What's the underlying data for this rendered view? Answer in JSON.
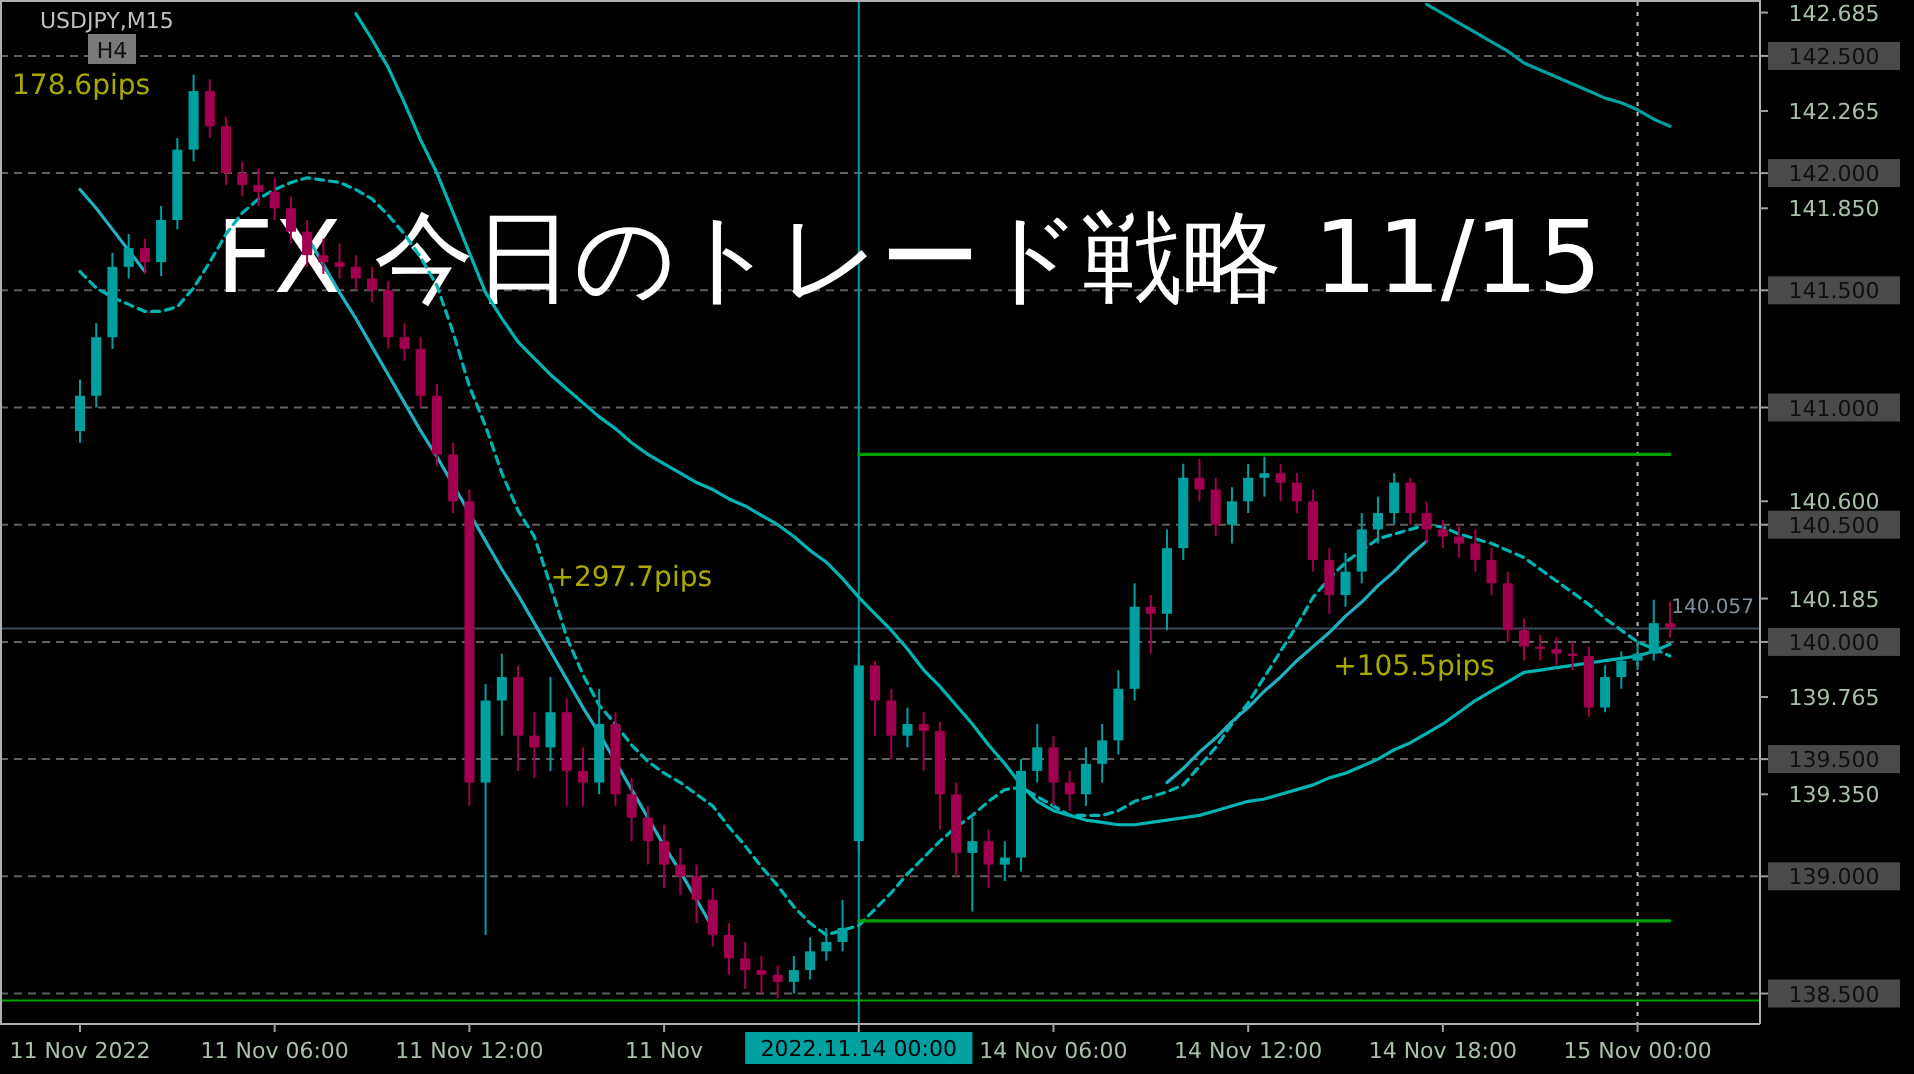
{
  "chart_data": {
    "type": "candlestick",
    "title": "FX 今日のトレード戦略 11/15",
    "subtitle": "USDJPY,M15",
    "categories": [
      "11 Nov 2022",
      null,
      null,
      null,
      null,
      null,
      null,
      null,
      null,
      null,
      null,
      null,
      "11 Nov 06:00",
      null,
      null,
      null,
      null,
      null,
      null,
      null,
      null,
      null,
      null,
      null,
      "11 Nov 12:00",
      null,
      null,
      null,
      null,
      null,
      null,
      null,
      null,
      null,
      null,
      null,
      "11 Nov",
      null,
      null,
      null,
      null,
      null,
      null,
      null,
      null,
      null,
      null,
      null,
      "2022.11.14 00:00",
      null,
      null,
      null,
      null,
      null,
      null,
      null,
      null,
      null,
      null,
      null,
      "14 Nov 06:00",
      null,
      null,
      null,
      null,
      null,
      null,
      null,
      null,
      null,
      null,
      null,
      "14 Nov 12:00",
      null,
      null,
      null,
      null,
      null,
      null,
      null,
      null,
      null,
      null,
      null,
      "14 Nov 18:00",
      null,
      null,
      null,
      null,
      null,
      null,
      null,
      null,
      null,
      null,
      null,
      "15 Nov 00:00",
      null,
      null
    ],
    "ohlc": [
      [
        140.9,
        141.12,
        140.85,
        141.05
      ],
      [
        141.05,
        141.36,
        141.0,
        141.3
      ],
      [
        141.3,
        141.66,
        141.25,
        141.6
      ],
      [
        141.6,
        141.74,
        141.55,
        141.68
      ],
      [
        141.68,
        141.72,
        141.57,
        141.62
      ],
      [
        141.62,
        141.86,
        141.56,
        141.8
      ],
      [
        141.8,
        142.15,
        141.76,
        142.1
      ],
      [
        142.1,
        142.42,
        142.05,
        142.35
      ],
      [
        142.35,
        142.4,
        142.15,
        142.2
      ],
      [
        142.2,
        142.24,
        141.95,
        142.0
      ],
      [
        142.0,
        142.05,
        141.9,
        141.95
      ],
      [
        141.95,
        142.02,
        141.86,
        141.92
      ],
      [
        141.92,
        141.98,
        141.8,
        141.85
      ],
      [
        141.85,
        141.9,
        141.7,
        141.75
      ],
      [
        141.75,
        141.8,
        141.6,
        141.65
      ],
      [
        141.65,
        141.72,
        141.57,
        141.62
      ],
      [
        141.62,
        141.7,
        141.55,
        141.6
      ],
      [
        141.6,
        141.65,
        141.5,
        141.55
      ],
      [
        141.55,
        141.6,
        141.45,
        141.5
      ],
      [
        141.5,
        141.54,
        141.25,
        141.3
      ],
      [
        141.3,
        141.36,
        141.2,
        141.25
      ],
      [
        141.25,
        141.3,
        141.0,
        141.05
      ],
      [
        141.05,
        141.1,
        140.75,
        140.8
      ],
      [
        140.8,
        140.85,
        140.55,
        140.6
      ],
      [
        140.6,
        140.65,
        139.3,
        139.4
      ],
      [
        139.4,
        139.82,
        138.75,
        139.75
      ],
      [
        139.75,
        139.95,
        139.6,
        139.85
      ],
      [
        139.85,
        139.9,
        139.45,
        139.6
      ],
      [
        139.6,
        139.7,
        139.42,
        139.55
      ],
      [
        139.55,
        139.85,
        139.45,
        139.7
      ],
      [
        139.7,
        139.76,
        139.3,
        139.45
      ],
      [
        139.45,
        139.55,
        139.3,
        139.4
      ],
      [
        139.4,
        139.8,
        139.35,
        139.65
      ],
      [
        139.65,
        139.7,
        139.3,
        139.35
      ],
      [
        139.35,
        139.42,
        139.15,
        139.25
      ],
      [
        139.25,
        139.3,
        139.05,
        139.15
      ],
      [
        139.15,
        139.22,
        138.95,
        139.05
      ],
      [
        139.05,
        139.12,
        138.92,
        139.0
      ],
      [
        139.0,
        139.05,
        138.8,
        138.9
      ],
      [
        138.9,
        138.95,
        138.7,
        138.75
      ],
      [
        138.75,
        138.8,
        138.58,
        138.65
      ],
      [
        138.65,
        138.72,
        138.52,
        138.6
      ],
      [
        138.6,
        138.66,
        138.5,
        138.58
      ],
      [
        138.58,
        138.62,
        138.48,
        138.55
      ],
      [
        138.55,
        138.66,
        138.5,
        138.6
      ],
      [
        138.6,
        138.74,
        138.56,
        138.68
      ],
      [
        138.68,
        138.78,
        138.64,
        138.72
      ],
      [
        138.72,
        138.9,
        138.68,
        138.78
      ],
      [
        139.15,
        139.95,
        139.1,
        139.9
      ],
      [
        139.9,
        139.92,
        139.6,
        139.75
      ],
      [
        139.75,
        139.8,
        139.5,
        139.6
      ],
      [
        139.6,
        139.72,
        139.55,
        139.65
      ],
      [
        139.65,
        139.7,
        139.45,
        139.62
      ],
      [
        139.62,
        139.66,
        139.2,
        139.35
      ],
      [
        139.35,
        139.4,
        139.0,
        139.1
      ],
      [
        139.1,
        139.25,
        138.85,
        139.15
      ],
      [
        139.15,
        139.2,
        138.95,
        139.05
      ],
      [
        139.05,
        139.15,
        138.98,
        139.08
      ],
      [
        139.08,
        139.5,
        139.02,
        139.45
      ],
      [
        139.45,
        139.65,
        139.4,
        139.55
      ],
      [
        139.55,
        139.6,
        139.3,
        139.4
      ],
      [
        139.4,
        139.45,
        139.28,
        139.35
      ],
      [
        139.35,
        139.55,
        139.3,
        139.48
      ],
      [
        139.48,
        139.65,
        139.4,
        139.58
      ],
      [
        139.58,
        139.88,
        139.52,
        139.8
      ],
      [
        139.8,
        140.25,
        139.75,
        140.15
      ],
      [
        140.15,
        140.2,
        139.95,
        140.12
      ],
      [
        140.12,
        140.48,
        140.05,
        140.4
      ],
      [
        140.4,
        140.76,
        140.35,
        140.7
      ],
      [
        140.7,
        140.78,
        140.6,
        140.65
      ],
      [
        140.65,
        140.7,
        140.45,
        140.5
      ],
      [
        140.5,
        140.66,
        140.42,
        140.6
      ],
      [
        140.6,
        140.76,
        140.55,
        140.7
      ],
      [
        140.7,
        140.79,
        140.62,
        140.72
      ],
      [
        140.72,
        140.76,
        140.6,
        140.68
      ],
      [
        140.68,
        140.72,
        140.55,
        140.6
      ],
      [
        140.6,
        140.65,
        140.3,
        140.35
      ],
      [
        140.35,
        140.4,
        140.12,
        140.2
      ],
      [
        140.2,
        140.38,
        140.15,
        140.3
      ],
      [
        140.3,
        140.55,
        140.25,
        140.48
      ],
      [
        140.48,
        140.62,
        140.42,
        140.55
      ],
      [
        140.55,
        140.72,
        140.5,
        140.68
      ],
      [
        140.68,
        140.7,
        140.5,
        140.55
      ],
      [
        140.55,
        140.6,
        140.42,
        140.48
      ],
      [
        140.48,
        140.52,
        140.4,
        140.45
      ],
      [
        140.45,
        140.5,
        140.36,
        140.42
      ],
      [
        140.42,
        140.48,
        140.3,
        140.35
      ],
      [
        140.35,
        140.4,
        140.2,
        140.25
      ],
      [
        140.25,
        140.3,
        140.0,
        140.05
      ],
      [
        140.05,
        140.1,
        139.92,
        139.98
      ],
      [
        139.98,
        140.03,
        139.92,
        139.97
      ],
      [
        139.97,
        140.02,
        139.9,
        139.95
      ],
      [
        139.95,
        140.0,
        139.88,
        139.94
      ],
      [
        139.94,
        139.98,
        139.68,
        139.72
      ],
      [
        139.72,
        139.9,
        139.7,
        139.85
      ],
      [
        139.85,
        139.96,
        139.8,
        139.92
      ],
      [
        139.92,
        140.0,
        139.88,
        139.95
      ],
      [
        139.95,
        140.18,
        139.92,
        140.08
      ],
      [
        140.08,
        140.17,
        140.02,
        140.06
      ]
    ],
    "colors": [
      "#00a0a0",
      "#00a0a0",
      "#00a0a0",
      "#00a0a0",
      "#a0004f",
      "#00a0a0",
      "#00a0a0",
      "#00a0a0",
      "#a0004f",
      "#a0004f",
      "#a0004f",
      "#a0004f",
      "#a0004f",
      "#a0004f",
      "#a0004f",
      "#a0004f",
      "#a0004f",
      "#a0004f",
      "#a0004f",
      "#a0004f",
      "#a0004f",
      "#a0004f",
      "#a0004f",
      "#a0004f",
      "#a0004f",
      "#00a0a0",
      "#00a0a0",
      "#a0004f",
      "#a0004f",
      "#00a0a0",
      "#a0004f",
      "#a0004f",
      "#00a0a0",
      "#a0004f",
      "#a0004f",
      "#a0004f",
      "#a0004f",
      "#a0004f",
      "#a0004f",
      "#a0004f",
      "#a0004f",
      "#a0004f",
      "#a0004f",
      "#a0004f",
      "#00a0a0",
      "#00a0a0",
      "#00a0a0",
      "#00a0a0",
      "#00a0a0",
      "#a0004f",
      "#a0004f",
      "#00a0a0",
      "#a0004f",
      "#a0004f",
      "#a0004f",
      "#00a0a0",
      "#a0004f",
      "#00a0a0",
      "#00a0a0",
      "#00a0a0",
      "#a0004f",
      "#a0004f",
      "#00a0a0",
      "#00a0a0",
      "#00a0a0",
      "#00a0a0",
      "#a0004f",
      "#00a0a0",
      "#00a0a0",
      "#a0004f",
      "#a0004f",
      "#00a0a0",
      "#00a0a0",
      "#00a0a0",
      "#a0004f",
      "#a0004f",
      "#a0004f",
      "#a0004f",
      "#00a0a0",
      "#00a0a0",
      "#00a0a0",
      "#00a0a0",
      "#a0004f",
      "#a0004f",
      "#a0004f",
      "#a0004f",
      "#a0004f",
      "#a0004f",
      "#a0004f",
      "#a0004f",
      "#a0004f",
      "#a0004f",
      "#a0004f",
      "#a0004f",
      "#00a0a0",
      "#00a0a0",
      "#00a0a0",
      "#00a0a0",
      "#a0004f"
    ],
    "series": [
      {
        "type": "line",
        "color": "#00b4b4",
        "line_style": "dashed",
        "values": [
          141.58,
          141.51,
          141.47,
          141.44,
          141.41,
          141.41,
          141.43,
          141.51,
          141.62,
          141.74,
          141.83,
          141.89,
          141.93,
          141.96,
          141.98,
          141.97,
          141.96,
          141.93,
          141.89,
          141.82,
          141.74,
          141.64,
          141.52,
          141.32,
          141.09,
          140.92,
          140.72,
          140.56,
          140.45,
          140.24,
          140.02,
          139.86,
          139.73,
          139.65,
          139.56,
          139.49,
          139.44,
          139.4,
          139.35,
          139.3,
          139.21,
          139.13,
          139.04,
          138.96,
          138.87,
          138.8,
          138.75,
          138.77,
          138.79,
          138.86,
          138.93,
          139.01,
          139.08,
          139.15,
          139.21,
          139.26,
          139.32,
          139.37,
          139.38,
          139.34,
          139.3,
          139.26,
          139.26,
          139.26,
          139.28,
          139.32,
          139.34,
          139.36,
          139.39,
          139.47,
          139.55,
          139.65,
          139.74,
          139.85,
          139.96,
          140.07,
          140.19,
          140.27,
          140.34,
          140.39,
          140.44,
          140.46,
          140.48,
          140.5,
          140.49,
          140.46,
          140.44,
          140.42,
          140.39,
          140.36,
          140.31,
          140.26,
          140.21,
          140.16,
          140.1,
          140.05,
          140.0,
          139.97,
          139.94
        ]
      },
      {
        "type": "line",
        "color": "#00b4b4",
        "line_style": "solid",
        "values": [
          null,
          null,
          null,
          null,
          null,
          null,
          null,
          null,
          null,
          null,
          null,
          null,
          null,
          null,
          null,
          null,
          null,
          142.68,
          142.57,
          142.45,
          142.3,
          142.14,
          142.0,
          141.83,
          141.66,
          141.49,
          141.38,
          141.28,
          141.21,
          141.14,
          141.08,
          141.02,
          140.96,
          140.91,
          140.85,
          140.8,
          140.76,
          140.72,
          140.68,
          140.65,
          140.61,
          140.58,
          140.54,
          140.5,
          140.45,
          140.39,
          140.34,
          140.27,
          140.19,
          140.12,
          140.05,
          139.97,
          139.88,
          139.81,
          139.73,
          139.65,
          139.56,
          139.48,
          139.39,
          139.32,
          139.28,
          139.26,
          139.24,
          139.23,
          139.22,
          139.22,
          139.23,
          139.24,
          139.25,
          139.26,
          139.28,
          139.3,
          139.32,
          139.33,
          139.35,
          139.37,
          139.39,
          139.42,
          139.44,
          139.47,
          139.5,
          139.54,
          139.57,
          139.61,
          139.65,
          139.7,
          139.75,
          139.79,
          139.83,
          139.87,
          139.88,
          139.89,
          139.9,
          139.91,
          139.92,
          139.93,
          139.94,
          139.96,
          139.99
        ]
      },
      {
        "type": "line",
        "color": "#00a0a0",
        "line_style": "solid",
        "values": [
          null,
          null,
          null,
          null,
          null,
          null,
          null,
          null,
          null,
          null,
          null,
          null,
          null,
          null,
          null,
          null,
          null,
          null,
          null,
          null,
          null,
          null,
          null,
          null,
          null,
          null,
          null,
          null,
          null,
          null,
          null,
          null,
          null,
          null,
          null,
          null,
          null,
          null,
          null,
          null,
          null,
          null,
          null,
          null,
          null,
          null,
          null,
          null,
          null,
          null,
          null,
          null,
          null,
          null,
          null,
          null,
          null,
          null,
          null,
          null,
          null,
          null,
          null,
          null,
          null,
          null,
          null,
          null,
          null,
          null,
          null,
          null,
          null,
          null,
          null,
          null,
          null,
          null,
          null,
          null,
          null,
          null,
          null,
          142.72,
          142.68,
          142.64,
          142.6,
          142.56,
          142.52,
          142.47,
          142.44,
          142.41,
          142.38,
          142.35,
          142.32,
          142.3,
          142.27,
          142.23,
          142.2
        ]
      },
      {
        "type": "line",
        "color": "#20b0c0",
        "line_style": "solid",
        "values": [
          141.93,
          141.85,
          141.76,
          141.67,
          141.58,
          null,
          null,
          null,
          null,
          null,
          null,
          null,
          null,
          null,
          null,
          null,
          null,
          null,
          null,
          null,
          null,
          null,
          null,
          null,
          null,
          null,
          null,
          null,
          null,
          null,
          null,
          null,
          null,
          null,
          null,
          null,
          null,
          null,
          null,
          null,
          null,
          null,
          null,
          null,
          null,
          null,
          null,
          null,
          null,
          null,
          null,
          null,
          null,
          null,
          null,
          null,
          null,
          null,
          null,
          null,
          null,
          null,
          null,
          null,
          null,
          null,
          null,
          null,
          null,
          null,
          null,
          null,
          null,
          null,
          null,
          null,
          null,
          null,
          null,
          null,
          null,
          null,
          null,
          null,
          null,
          null,
          null,
          null,
          null,
          null,
          null,
          null,
          null,
          null,
          null,
          null,
          null,
          null,
          null
        ]
      },
      {
        "type": "line",
        "color": "#20b0c0",
        "line_style": "solid",
        "values": [
          null,
          null,
          null,
          null,
          null,
          null,
          null,
          null,
          null,
          null,
          null,
          null,
          null,
          null,
          141.73,
          141.61,
          141.49,
          141.38,
          141.26,
          141.14,
          141.02,
          140.9,
          140.79,
          140.67,
          140.55,
          140.43,
          140.31,
          140.2,
          140.08,
          139.96,
          139.84,
          139.72,
          139.61,
          139.49,
          139.37,
          139.25,
          139.13,
          139.02,
          138.9,
          138.78,
          null,
          null,
          null,
          null,
          null,
          null,
          null,
          null,
          null,
          null,
          null,
          null,
          null,
          null,
          null,
          null,
          null,
          null,
          null,
          null,
          null,
          null,
          null,
          null,
          null,
          null,
          null,
          null,
          null,
          null,
          null,
          null,
          null,
          null,
          null,
          null,
          null,
          null,
          null,
          null,
          null,
          null,
          null,
          null,
          null,
          null,
          null,
          null,
          null,
          null,
          null,
          null,
          null,
          null,
          null,
          null,
          null,
          null,
          null
        ]
      },
      {
        "type": "line",
        "color": "#20b0c0",
        "line_style": "solid",
        "values": [
          null,
          null,
          null,
          null,
          null,
          null,
          null,
          null,
          null,
          null,
          null,
          null,
          null,
          null,
          null,
          null,
          null,
          null,
          null,
          null,
          null,
          null,
          null,
          null,
          null,
          null,
          null,
          null,
          null,
          null,
          null,
          null,
          null,
          null,
          null,
          null,
          null,
          null,
          null,
          null,
          null,
          null,
          null,
          null,
          null,
          null,
          null,
          null,
          null,
          null,
          null,
          null,
          null,
          null,
          null,
          null,
          null,
          null,
          null,
          null,
          null,
          null,
          null,
          null,
          null,
          null,
          null,
          139.4,
          139.46,
          139.53,
          139.59,
          139.66,
          139.72,
          139.79,
          139.85,
          139.92,
          139.98,
          140.04,
          140.11,
          140.17,
          140.24,
          140.3,
          140.37,
          140.43,
          null,
          null,
          null,
          null,
          null,
          null,
          null,
          null,
          null,
          null,
          null,
          null,
          null,
          null,
          null
        ]
      },
      {
        "type": "line",
        "color": "#00a000",
        "line_style": "solid",
        "values": [
          null,
          null,
          null,
          null,
          null,
          null,
          null,
          null,
          null,
          null,
          null,
          null,
          null,
          null,
          null,
          null,
          null,
          null,
          null,
          null,
          null,
          null,
          null,
          null,
          null,
          null,
          null,
          null,
          null,
          null,
          null,
          null,
          null,
          null,
          null,
          null,
          null,
          null,
          null,
          null,
          null,
          null,
          null,
          null,
          null,
          null,
          null,
          null,
          140.8,
          140.8,
          140.8,
          140.8,
          140.8,
          140.8,
          140.8,
          140.8,
          140.8,
          140.8,
          140.8,
          140.8,
          140.8,
          140.8,
          140.8,
          140.8,
          140.8,
          140.8,
          140.8,
          140.8,
          140.8,
          140.8,
          140.8,
          140.8,
          140.8,
          140.8,
          140.8,
          140.8,
          140.8,
          140.8,
          140.8,
          140.8,
          140.8,
          140.8,
          140.8,
          140.8,
          140.8,
          140.8,
          140.8,
          140.8,
          140.8,
          140.8,
          140.8,
          140.8,
          140.8,
          140.8,
          140.8,
          140.8,
          140.8,
          140.8,
          140.8
        ]
      },
      {
        "type": "line",
        "color": "#00a000",
        "line_style": "solid",
        "values": [
          null,
          null,
          null,
          null,
          null,
          null,
          null,
          null,
          null,
          null,
          null,
          null,
          null,
          null,
          null,
          null,
          null,
          null,
          null,
          null,
          null,
          null,
          null,
          null,
          null,
          null,
          null,
          null,
          null,
          null,
          null,
          null,
          null,
          null,
          null,
          null,
          null,
          null,
          null,
          null,
          null,
          null,
          null,
          null,
          null,
          null,
          null,
          null,
          138.81,
          138.81,
          138.81,
          138.81,
          138.81,
          138.81,
          138.81,
          138.81,
          138.81,
          138.81,
          138.81,
          138.81,
          138.81,
          138.81,
          138.81,
          138.81,
          138.81,
          138.81,
          138.81,
          138.81,
          138.81,
          138.81,
          138.81,
          138.81,
          138.81,
          138.81,
          138.81,
          138.81,
          138.81,
          138.81,
          138.81,
          138.81,
          138.81,
          138.81,
          138.81,
          138.81,
          138.81,
          138.81,
          138.81,
          138.81,
          138.81,
          138.81,
          138.81,
          138.81,
          138.81,
          138.81,
          138.81,
          138.81,
          138.81,
          138.81,
          138.81
        ]
      }
    ],
    "ylim": [
      138.37,
      142.73
    ],
    "yticks": [
      {
        "value": 142.685,
        "label": "142.685"
      },
      {
        "value": 142.265,
        "label": "142.265"
      },
      {
        "value": 141.85,
        "label": "141.850"
      },
      {
        "value": 140.6,
        "label": "140.600"
      },
      {
        "value": 140.185,
        "label": "140.185"
      },
      {
        "value": 139.765,
        "label": "139.765"
      },
      {
        "value": 139.35,
        "label": "139.350"
      }
    ],
    "ref_lines": [
      {
        "axis": "y",
        "value": 142.5,
        "label": "142.500",
        "color": "#606060",
        "line_style": "dashed"
      },
      {
        "axis": "y",
        "value": 142.0,
        "label": "142.000",
        "color": "#606060",
        "line_style": "dashed"
      },
      {
        "axis": "y",
        "value": 141.5,
        "label": "141.500",
        "color": "#606060",
        "line_style": "dashed"
      },
      {
        "axis": "y",
        "value": 141.0,
        "label": "141.000",
        "color": "#606060",
        "line_style": "dashed"
      },
      {
        "axis": "y",
        "value": 140.5,
        "label": "140.500",
        "color": "#606060",
        "line_style": "dashed"
      },
      {
        "axis": "y",
        "value": 140.0,
        "label": "140.000",
        "color": "#606060",
        "line_style": "dashed"
      },
      {
        "axis": "y",
        "value": 139.5,
        "label": "139.500",
        "color": "#606060",
        "line_style": "dashed"
      },
      {
        "axis": "y",
        "value": 139.0,
        "label": "139.000",
        "color": "#606060",
        "line_style": "dashed"
      },
      {
        "axis": "y",
        "value": 138.5,
        "label": "138.500",
        "color": "#606060",
        "line_style": "dashed"
      },
      {
        "axis": "y",
        "value": 140.057,
        "label": "140.057",
        "color": "#3a4a5c",
        "line_style": "solid"
      },
      {
        "axis": "y",
        "value": 138.47,
        "color": "#00a000",
        "line_style": "solid"
      },
      {
        "axis": "x",
        "value": "2022.11.14 00:00",
        "color": "#00a0a0",
        "line_style": "solid"
      },
      {
        "axis": "x",
        "value": "15 Nov 00:00",
        "color": "#c0c0c0",
        "line_style": "dotted"
      }
    ],
    "annotations": [
      "178.6pips",
      "+297.7pips",
      "+105.5pips",
      "H4"
    ]
  }
}
